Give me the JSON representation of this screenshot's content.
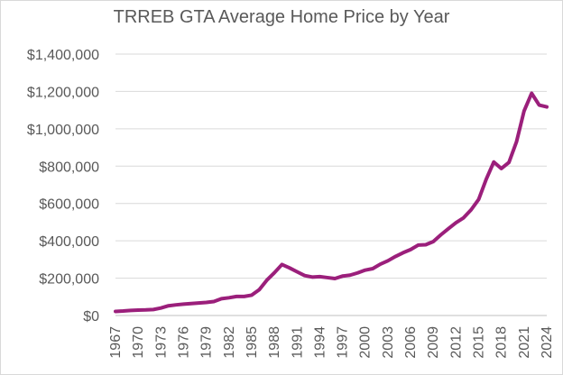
{
  "chart_data": {
    "type": "line",
    "title": "TRREB GTA Average Home Price by Year",
    "xlabel": "",
    "ylabel": "",
    "ylim": [
      0,
      1400000
    ],
    "yticks": [
      0,
      200000,
      400000,
      600000,
      800000,
      1000000,
      1200000,
      1400000
    ],
    "ytick_labels": [
      "$0",
      "$200,000",
      "$400,000",
      "$600,000",
      "$800,000",
      "$1,000,000",
      "$1,200,000",
      "$1,400,000"
    ],
    "xlim": [
      1967,
      2024
    ],
    "xticks": [
      "1967",
      "1970",
      "1973",
      "1976",
      "1979",
      "1982",
      "1985",
      "1988",
      "1991",
      "1994",
      "1997",
      "2000",
      "2003",
      "2006",
      "2009",
      "2012",
      "2015",
      "2018",
      "2021",
      "2024"
    ],
    "grid": true,
    "legend": "none",
    "line_color": "#9b1f7b",
    "series": [
      {
        "name": "Average Home Price",
        "x": [
          1967,
          1968,
          1969,
          1970,
          1971,
          1972,
          1973,
          1974,
          1975,
          1976,
          1977,
          1978,
          1979,
          1980,
          1981,
          1982,
          1983,
          1984,
          1985,
          1986,
          1987,
          1988,
          1989,
          1990,
          1991,
          1992,
          1993,
          1994,
          1995,
          1996,
          1997,
          1998,
          1999,
          2000,
          2001,
          2002,
          2003,
          2004,
          2005,
          2006,
          2007,
          2008,
          2009,
          2010,
          2011,
          2012,
          2013,
          2014,
          2015,
          2016,
          2017,
          2018,
          2019,
          2020,
          2021,
          2022,
          2023,
          2024
        ],
        "values": [
          22000,
          24000,
          27000,
          29000,
          30000,
          32000,
          40000,
          52000,
          57000,
          61000,
          64000,
          67000,
          70000,
          75000,
          90000,
          95000,
          102000,
          102000,
          109000,
          138000,
          189000,
          229000,
          273000,
          255000,
          234000,
          214000,
          206000,
          208000,
          203000,
          198000,
          211000,
          216000,
          228000,
          243000,
          251000,
          275000,
          293000,
          316000,
          336000,
          353000,
          377000,
          379000,
          396000,
          432000,
          465000,
          497000,
          523000,
          566000,
          622000,
          730000,
          822000,
          787000,
          820000,
          930000,
          1095000,
          1190000,
          1127000,
          1117000
        ]
      }
    ]
  }
}
